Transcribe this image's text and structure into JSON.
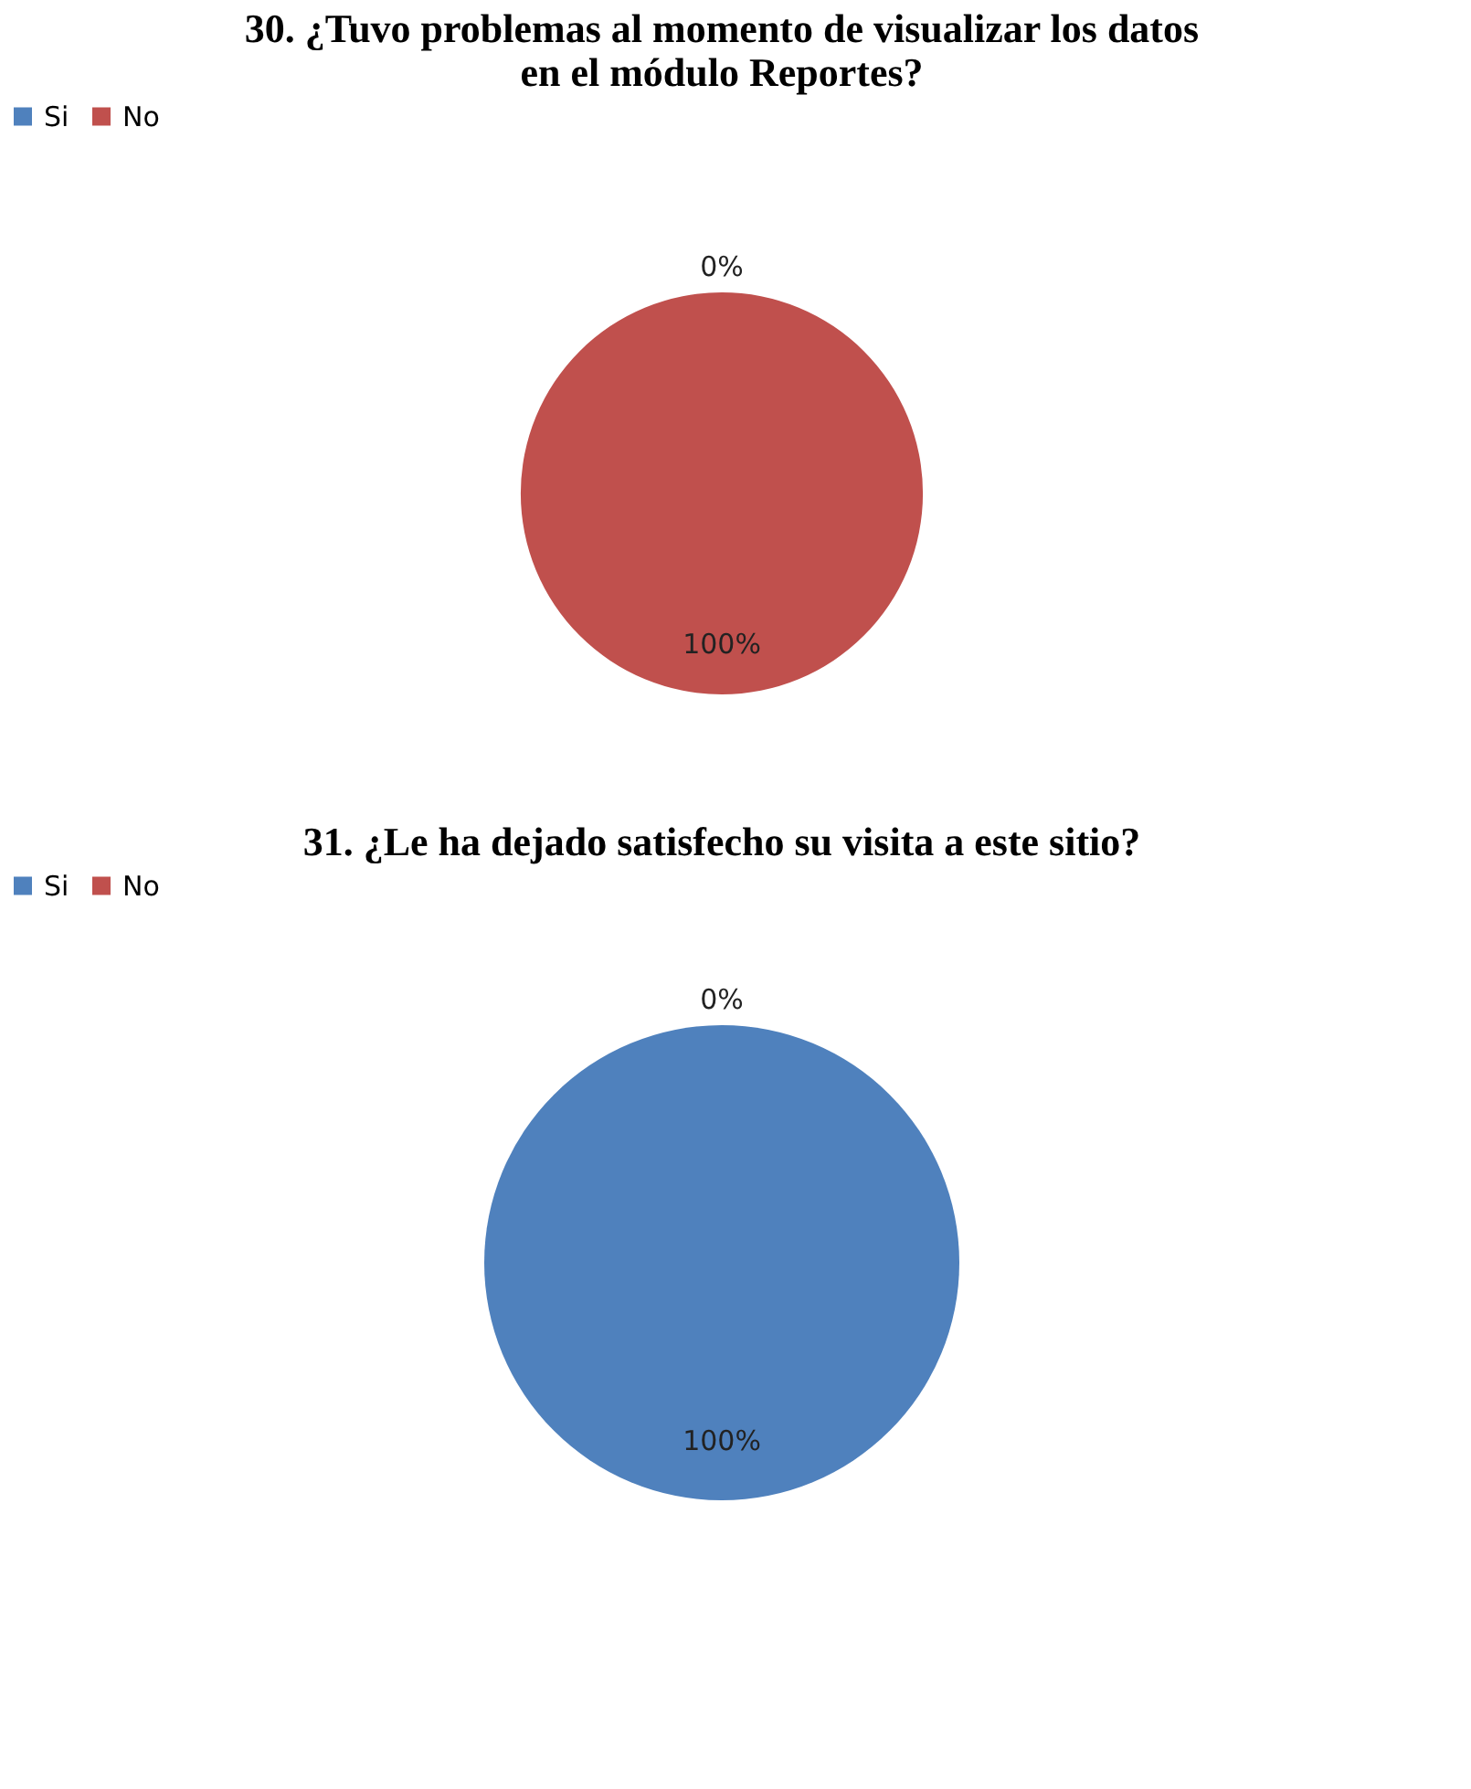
{
  "chart_data": [
    {
      "type": "pie",
      "title": "30. ¿Tuvo problemas al momento de visualizar los datos en el módulo Reportes?",
      "categories": [
        "Si",
        "No"
      ],
      "values": [
        0,
        100
      ],
      "colors": [
        "#4f81bd",
        "#c0504d"
      ],
      "value_labels": [
        "0%",
        "100%"
      ],
      "legend": "top"
    },
    {
      "type": "pie",
      "title": "31. ¿Le ha dejado satisfecho su visita a este sitio?",
      "categories": [
        "Si",
        "No"
      ],
      "values": [
        100,
        0
      ],
      "colors": [
        "#4f81bd",
        "#c0504d"
      ],
      "value_labels": [
        "100%",
        "0%"
      ],
      "legend": "top"
    }
  ]
}
